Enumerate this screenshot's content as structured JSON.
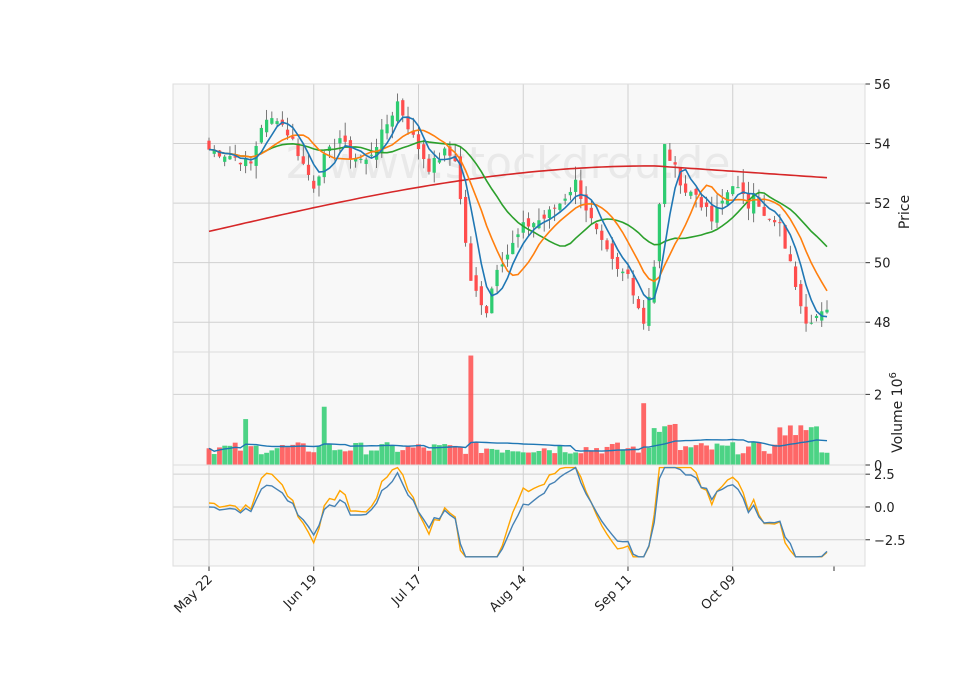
{
  "chart_data": {
    "type": "candlestick",
    "panels": [
      {
        "name": "price",
        "ylabel": "Price",
        "ylim": [
          47.0,
          56.0
        ],
        "yticks": [
          48,
          50,
          52,
          54,
          56
        ]
      },
      {
        "name": "volume",
        "ylabel": "Volume",
        "ylabel_exponent": "10",
        "ylabel_power": "6",
        "ylim": [
          0,
          3.2
        ],
        "yticks": [
          0,
          2
        ]
      },
      {
        "name": "oscillator",
        "ylabel": "",
        "ylim": [
          -4.5,
          3.2
        ],
        "yticks": [
          -2.5,
          0.0,
          2.5
        ],
        "ytick_labels": [
          "−2.5",
          "0.0",
          "2.5"
        ]
      }
    ],
    "x_tick_labels": [
      "May 22",
      "Jun 19",
      "Jul 17",
      "Aug 14",
      "Sep 11",
      "Oct 09"
    ],
    "x_tick_index": [
      0,
      20,
      40,
      60,
      80,
      100
    ],
    "watermark": "2 www.stockdrou.de",
    "colors": {
      "up": "#2ecc71",
      "down": "#ff4d4d",
      "ma_fast": "#1f77b4",
      "ma_mid": "#ff7f0e",
      "ma_slow": "#2ca02c",
      "ma_long": "#d62728",
      "osc_main": "#4682b4",
      "osc_signal": "#ffa500",
      "volume_avg": "#1f77b4"
    },
    "close_anchors": [
      [
        0,
        53.8
      ],
      [
        4,
        53.6
      ],
      [
        8,
        53.3
      ],
      [
        10,
        54.6
      ],
      [
        13,
        54.9
      ],
      [
        16,
        54.1
      ],
      [
        18,
        53.3
      ],
      [
        20,
        52.6
      ],
      [
        22,
        53.5
      ],
      [
        25,
        54.2
      ],
      [
        27,
        53.6
      ],
      [
        30,
        53.4
      ],
      [
        33,
        54.3
      ],
      [
        36,
        55.4
      ],
      [
        39,
        54.2
      ],
      [
        42,
        53.2
      ],
      [
        45,
        53.7
      ],
      [
        47,
        53.5
      ],
      [
        50,
        49.3
      ],
      [
        53,
        48.4
      ],
      [
        55,
        49.9
      ],
      [
        57,
        50.3
      ],
      [
        60,
        51.2
      ],
      [
        64,
        51.5
      ],
      [
        67,
        52.0
      ],
      [
        70,
        52.7
      ],
      [
        73,
        51.4
      ],
      [
        75,
        50.6
      ],
      [
        78,
        49.7
      ],
      [
        80,
        49.6
      ],
      [
        83,
        48.0
      ],
      [
        85,
        49.9
      ],
      [
        87,
        53.9
      ],
      [
        88,
        53.5
      ],
      [
        91,
        52.4
      ],
      [
        93,
        52.3
      ],
      [
        96,
        51.4
      ],
      [
        100,
        52.7
      ],
      [
        103,
        51.9
      ],
      [
        104,
        52.5
      ],
      [
        106,
        51.5
      ],
      [
        109,
        51.2
      ],
      [
        112,
        49.3
      ],
      [
        114,
        48.1
      ],
      [
        116,
        48.2
      ],
      [
        118,
        48.3
      ]
    ],
    "ohlc_count": 119
  }
}
